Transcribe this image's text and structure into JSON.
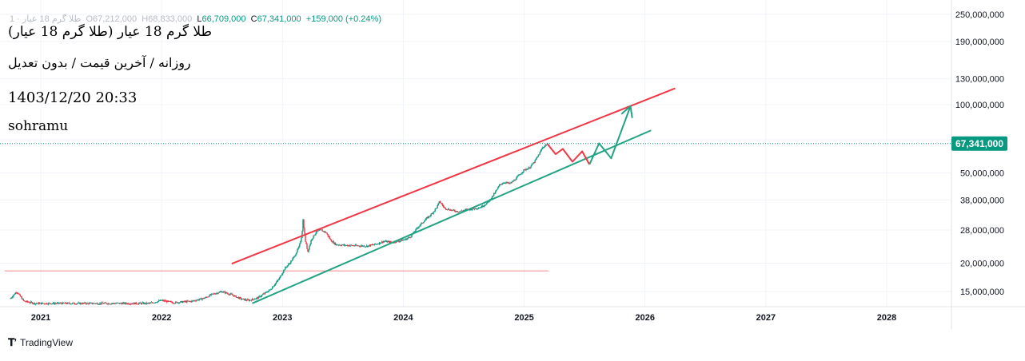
{
  "header": {
    "symbol_short": "طلا گرم 18 عیار · 1",
    "o_label": "O",
    "o_value": "67,212,000",
    "h_label": "H",
    "h_value": "68,833,000",
    "l_label": "L",
    "l_value": "66,709,000",
    "c_label": "C",
    "c_value": "67,341,000",
    "change": "+159,000 (+0.24%)"
  },
  "annotation": {
    "title": "طلا گرم 18 عیار (طلا گرم 18 عیار)",
    "subtitle": "روزانه / آخرین قیمت / بدون تعدیل",
    "datetime": "1403/12/20 20:33",
    "author": "sohramu"
  },
  "footer": {
    "brand": "TradingView",
    "logo_icon": "tradingview-logo-icon"
  },
  "colors": {
    "up": "#089981",
    "down": "#f23645",
    "resistance": "#f23645",
    "support": "#22a383",
    "projection_up": "#22a383",
    "projection_down": "#f23645",
    "horizontal": "#f23645",
    "last_price": "#089981"
  },
  "chart_data": {
    "type": "candlestick",
    "scale": "log",
    "ylim": [
      13200000,
      290000000
    ],
    "xlim": [
      2020.7,
      2028.9
    ],
    "y_ticks": [
      {
        "value": 15000000,
        "label": "15,000,000"
      },
      {
        "value": 20000000,
        "label": "20,000,000"
      },
      {
        "value": 28000000,
        "label": "28,000,000"
      },
      {
        "value": 38000000,
        "label": "38,000,000"
      },
      {
        "value": 50000000,
        "label": "50,000,000"
      },
      {
        "value": 70000000,
        "label": "70,000,000"
      },
      {
        "value": 100000000,
        "label": "100,000,000"
      },
      {
        "value": 130000000,
        "label": "130,000,000"
      },
      {
        "value": 190000000,
        "label": "190,000,000"
      },
      {
        "value": 250000000,
        "label": "250,000,000"
      }
    ],
    "x_ticks": [
      {
        "value": 2021,
        "label": "2021"
      },
      {
        "value": 2022,
        "label": "2022"
      },
      {
        "value": 2023,
        "label": "2023"
      },
      {
        "value": 2024,
        "label": "2024"
      },
      {
        "value": 2025,
        "label": "2025"
      },
      {
        "value": 2026,
        "label": "2026"
      },
      {
        "value": 2027,
        "label": "2027"
      },
      {
        "value": 2028,
        "label": "2028"
      }
    ],
    "last_price": {
      "value": 67341000,
      "label": "67,341,000"
    },
    "price_path": [
      [
        2020.75,
        14000000
      ],
      [
        2020.8,
        15000000
      ],
      [
        2020.86,
        13600000
      ],
      [
        2020.95,
        13300000
      ],
      [
        2021.9,
        13300000
      ],
      [
        2022.0,
        13700000
      ],
      [
        2022.1,
        13400000
      ],
      [
        2022.25,
        13600000
      ],
      [
        2022.35,
        14000000
      ],
      [
        2022.42,
        14600000
      ],
      [
        2022.5,
        15000000
      ],
      [
        2022.58,
        14500000
      ],
      [
        2022.66,
        13900000
      ],
      [
        2022.72,
        13700000
      ],
      [
        2022.8,
        14100000
      ],
      [
        2022.9,
        15300000
      ],
      [
        2022.97,
        17000000
      ],
      [
        2023.02,
        19000000
      ],
      [
        2023.06,
        20000000
      ],
      [
        2023.1,
        21500000
      ],
      [
        2023.14,
        23800000
      ],
      [
        2023.16,
        26500000
      ],
      [
        2023.17,
        31000000
      ],
      [
        2023.19,
        25000000
      ],
      [
        2023.21,
        22500000
      ],
      [
        2023.24,
        25500000
      ],
      [
        2023.28,
        27500000
      ],
      [
        2023.32,
        28000000
      ],
      [
        2023.36,
        27300000
      ],
      [
        2023.4,
        25200000
      ],
      [
        2023.44,
        24200000
      ],
      [
        2023.5,
        24000000
      ],
      [
        2023.6,
        23900000
      ],
      [
        2023.7,
        23800000
      ],
      [
        2023.78,
        24300000
      ],
      [
        2023.84,
        25000000
      ],
      [
        2023.9,
        24700000
      ],
      [
        2023.96,
        25000000
      ],
      [
        2024.02,
        25500000
      ],
      [
        2024.06,
        26200000
      ],
      [
        2024.12,
        28800000
      ],
      [
        2024.18,
        31000000
      ],
      [
        2024.24,
        33200000
      ],
      [
        2024.28,
        35500000
      ],
      [
        2024.3,
        37500000
      ],
      [
        2024.34,
        35000000
      ],
      [
        2024.4,
        34200000
      ],
      [
        2024.46,
        33800000
      ],
      [
        2024.52,
        34400000
      ],
      [
        2024.58,
        34700000
      ],
      [
        2024.64,
        35300000
      ],
      [
        2024.7,
        37000000
      ],
      [
        2024.76,
        41000000
      ],
      [
        2024.8,
        44500000
      ],
      [
        2024.84,
        45500000
      ],
      [
        2024.88,
        44800000
      ],
      [
        2024.92,
        46500000
      ],
      [
        2024.96,
        49000000
      ],
      [
        2025.0,
        51500000
      ],
      [
        2025.04,
        52500000
      ],
      [
        2025.08,
        55500000
      ],
      [
        2025.12,
        60000000
      ],
      [
        2025.15,
        64500000
      ],
      [
        2025.18,
        66500000
      ],
      [
        2025.19,
        67341000
      ]
    ],
    "lines": [
      {
        "name": "resistance",
        "from": [
          2022.58,
          19900000
        ],
        "to": [
          2026.25,
          118000000
        ]
      },
      {
        "name": "support",
        "from": [
          2022.75,
          13300000
        ],
        "to": [
          2026.05,
          77000000
        ]
      },
      {
        "name": "horizontal-level",
        "from": [
          2020.7,
          18500000
        ],
        "to": [
          2025.2,
          18500000
        ]
      }
    ],
    "projections": [
      {
        "name": "projection-down",
        "points": [
          [
            2025.19,
            67341000
          ],
          [
            2025.26,
            60500000
          ],
          [
            2025.32,
            63800000
          ],
          [
            2025.4,
            56000000
          ],
          [
            2025.48,
            62300000
          ],
          [
            2025.54,
            54500000
          ]
        ]
      },
      {
        "name": "projection-up",
        "points": [
          [
            2025.54,
            54500000
          ],
          [
            2025.62,
            67500000
          ],
          [
            2025.72,
            58000000
          ],
          [
            2025.88,
            98500000
          ]
        ]
      }
    ]
  }
}
